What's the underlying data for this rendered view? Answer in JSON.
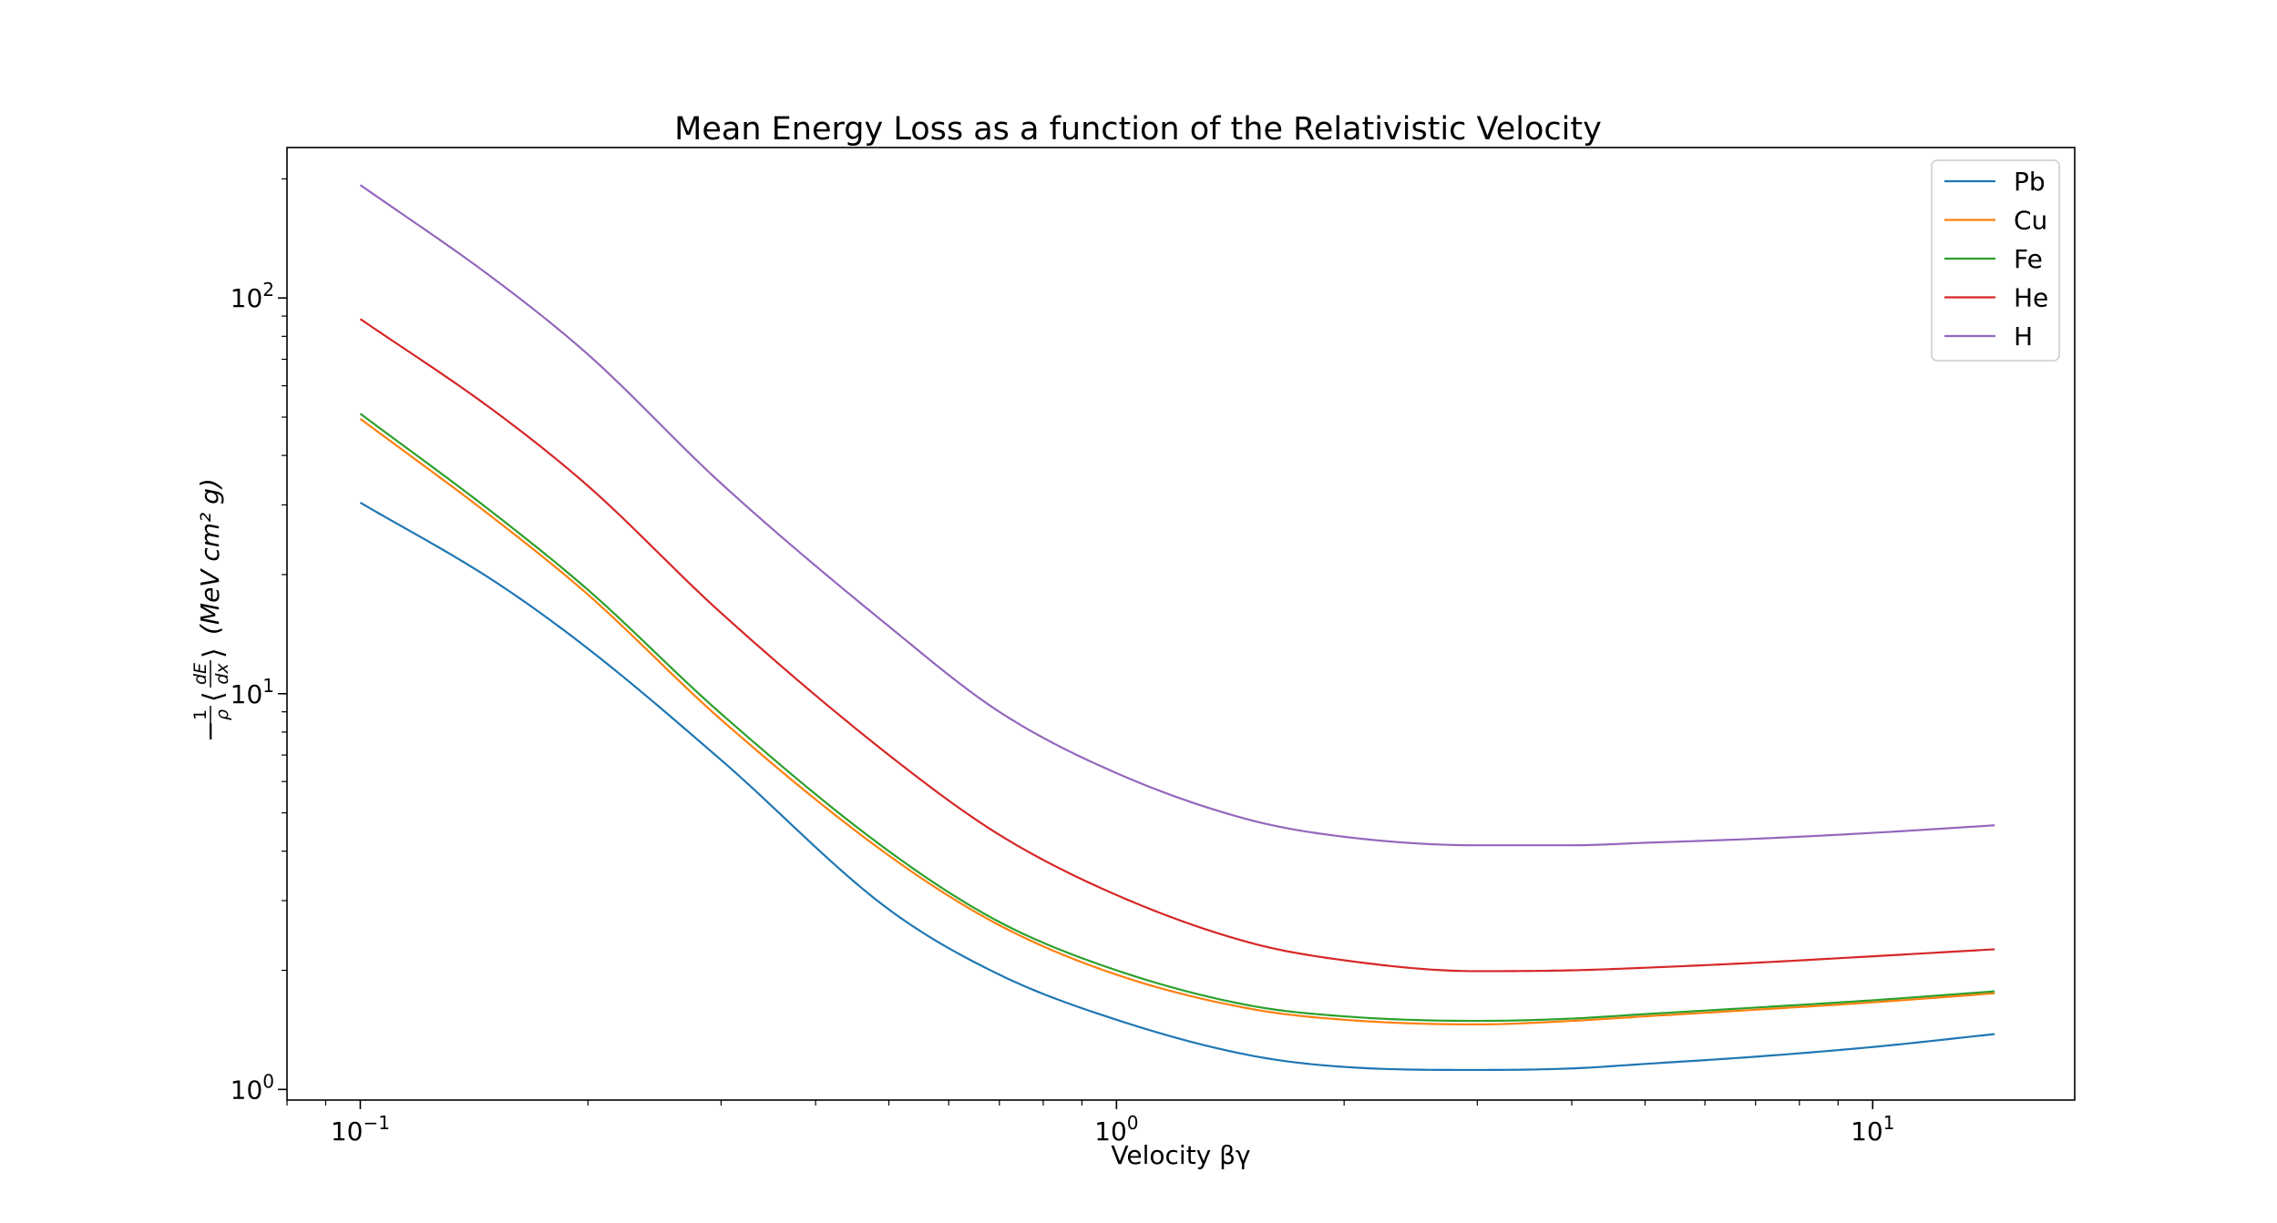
{
  "chart_data": {
    "type": "line",
    "title": "Mean Energy Loss as a function of the Relativistic Velocity",
    "xlabel": "Velocity βγ",
    "ylabel_parts": {
      "prefix": "−",
      "frac_num": "1",
      "frac_den": "ρ",
      "open": "⟨",
      "d_num": "dE",
      "d_den": "dx",
      "close": "⟩",
      "unit": "(MeV cm² g)"
    },
    "x_scale": "log",
    "y_scale": "log",
    "xlim": [
      0.08,
      18.5
    ],
    "ylim": [
      0.94,
      240
    ],
    "xticks": [
      {
        "value": 0.1,
        "base": "10",
        "exp": "−1"
      },
      {
        "value": 1,
        "base": "10",
        "exp": "0"
      },
      {
        "value": 10,
        "base": "10",
        "exp": "1"
      }
    ],
    "yticks": [
      {
        "value": 1,
        "base": "10",
        "exp": "0"
      },
      {
        "value": 10,
        "base": "10",
        "exp": "1"
      },
      {
        "value": 100,
        "base": "10",
        "exp": "2"
      }
    ],
    "grid": false,
    "legend_position": "top-right",
    "x": [
      0.1,
      0.15,
      0.2,
      0.3,
      0.5,
      0.7,
      1.0,
      1.5,
      2.0,
      3.0,
      4.0,
      5.0,
      7.0,
      10.0,
      14.5
    ],
    "series": [
      {
        "name": "Pb",
        "color": "#1f77b4",
        "values": [
          30.4,
          19.3,
          13.0,
          6.8,
          2.85,
          1.95,
          1.5,
          1.22,
          1.14,
          1.12,
          1.13,
          1.16,
          1.21,
          1.28,
          1.38
        ]
      },
      {
        "name": "Cu",
        "color": "#ff7f0e",
        "values": [
          49.5,
          27.8,
          17.8,
          8.6,
          3.9,
          2.6,
          1.95,
          1.6,
          1.5,
          1.46,
          1.49,
          1.53,
          1.59,
          1.66,
          1.75
        ]
      },
      {
        "name": "Fe",
        "color": "#2ca02c",
        "values": [
          51.0,
          28.6,
          18.3,
          8.9,
          4.0,
          2.65,
          2.0,
          1.63,
          1.53,
          1.49,
          1.51,
          1.55,
          1.61,
          1.68,
          1.77
        ]
      },
      {
        "name": "He",
        "color": "#d62728",
        "values": [
          88.5,
          52.0,
          33.5,
          16.0,
          7.0,
          4.4,
          3.1,
          2.35,
          2.12,
          1.99,
          2.0,
          2.03,
          2.09,
          2.17,
          2.26
        ]
      },
      {
        "name": "H",
        "color": "#9467bd",
        "values": [
          193.0,
          112.0,
          72.0,
          34.0,
          14.8,
          9.0,
          6.3,
          4.8,
          4.35,
          4.14,
          4.14,
          4.2,
          4.3,
          4.45,
          4.65
        ]
      }
    ]
  }
}
